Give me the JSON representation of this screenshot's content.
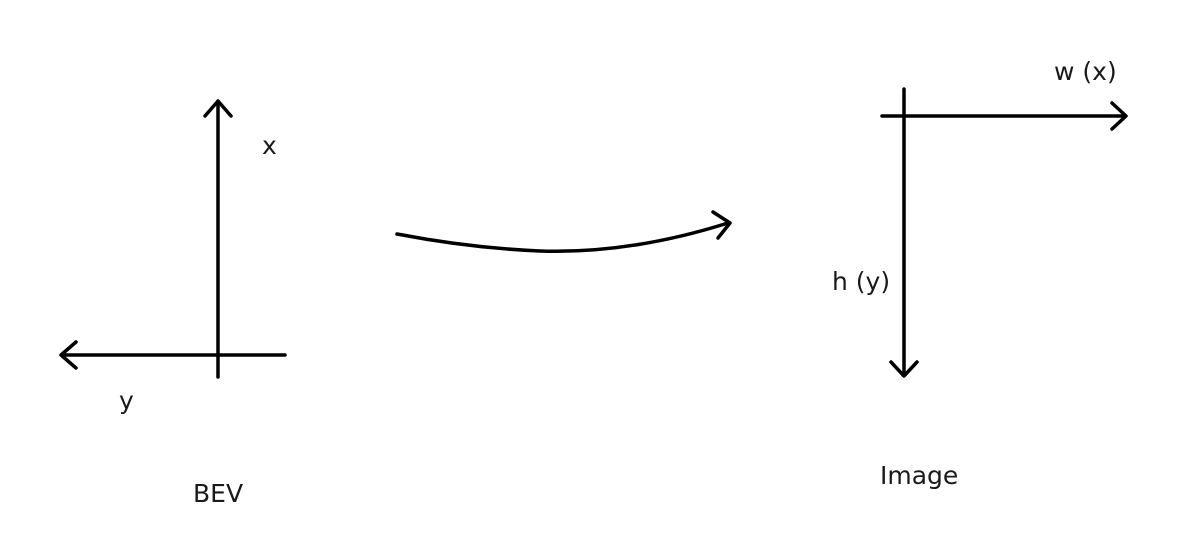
{
  "bev": {
    "caption": "BEV",
    "x_axis_label": "x",
    "y_axis_label": "y"
  },
  "image": {
    "caption": "Image",
    "w_axis_label": "w (x)",
    "h_axis_label": "h (y)"
  },
  "colors": {
    "stroke": "#000000",
    "text": "#1a1a1a",
    "background": "#ffffff"
  }
}
